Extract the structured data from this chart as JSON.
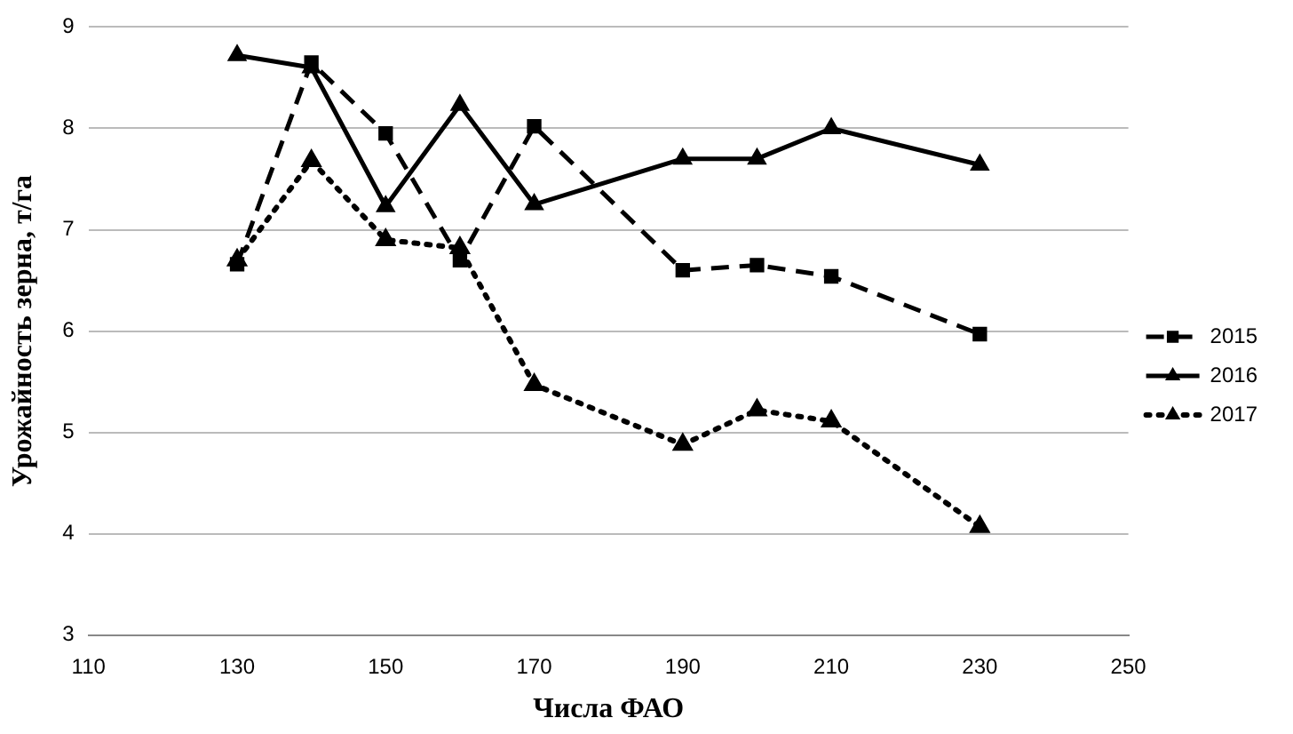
{
  "chart_data": {
    "type": "line",
    "xlabel": "Числа ФАО",
    "ylabel": "Урожайность зерна, т/га",
    "x": [
      130,
      140,
      150,
      160,
      170,
      190,
      200,
      210,
      230
    ],
    "xlim": [
      110,
      250
    ],
    "xticks": [
      110,
      130,
      150,
      170,
      190,
      210,
      230,
      250
    ],
    "ylim": [
      3,
      9
    ],
    "yticks": [
      3,
      4,
      5,
      6,
      7,
      8,
      9
    ],
    "grid": "y",
    "legend": "right",
    "series": [
      {
        "name": "2015",
        "color": "#000000",
        "marker": "square",
        "line_style": "dashed",
        "values": [
          6.66,
          8.65,
          7.95,
          6.7,
          8.02,
          6.6,
          6.65,
          6.54,
          5.97
        ]
      },
      {
        "name": "2016",
        "color": "#000000",
        "marker": "triangle",
        "line_style": "solid",
        "values": [
          8.72,
          8.6,
          7.23,
          8.23,
          7.25,
          7.7,
          7.7,
          8.0,
          7.64
        ]
      },
      {
        "name": "2017",
        "color": "#000000",
        "marker": "triangle",
        "line_style": "dotted",
        "values": [
          6.7,
          7.68,
          6.9,
          6.82,
          5.47,
          4.88,
          5.22,
          5.11,
          4.07
        ]
      }
    ]
  }
}
